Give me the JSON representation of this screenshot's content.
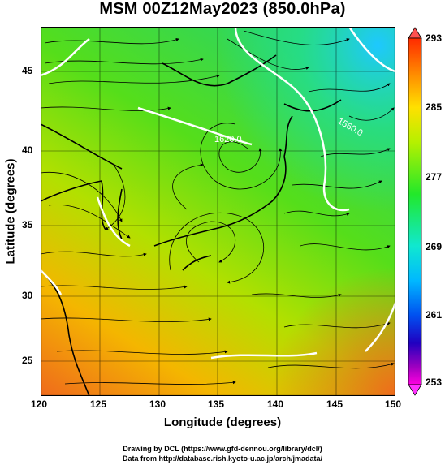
{
  "title": "MSM 00Z12May2023 (850.0hPa)",
  "x_axis": {
    "label": "Longitude (degrees)",
    "ticks": [
      "120",
      "125",
      "130",
      "135",
      "140",
      "145",
      "150"
    ],
    "range": [
      120,
      150
    ]
  },
  "y_axis": {
    "label": "Latitude  (degrees)",
    "ticks": [
      "25",
      "30",
      "35",
      "40",
      "45"
    ],
    "range": [
      22.5,
      48
    ]
  },
  "colorbar": {
    "ticks": [
      "253",
      "261",
      "269",
      "277",
      "285",
      "293"
    ],
    "range": [
      253,
      293
    ]
  },
  "contour_labels": [
    "1620.0",
    "1560.0"
  ],
  "credits": {
    "line1": "Drawing by DCL (https://www.gfd-dennou.org/library/dcl/)",
    "line2": "Data from http://database.rish.kyoto-u.ac.jp/arch/jmadata/"
  },
  "colors": {
    "warm": "#f07820",
    "mid": "#9ad900",
    "cool": "#20d0ff",
    "contour": "#ffffff"
  },
  "icons": [
    "colorbar-up-arrow-icon",
    "colorbar-down-arrow-icon"
  ]
}
